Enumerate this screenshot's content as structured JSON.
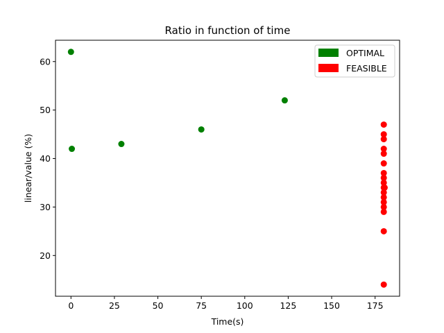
{
  "chart_data": {
    "type": "scatter",
    "title": "Ratio in function of time",
    "xlabel": "Time(s)",
    "ylabel": "linear/value (%)",
    "xlim": [
      -8.9,
      189.1
    ],
    "ylim": [
      11.6,
      64.4
    ],
    "xticks": [
      0,
      25,
      50,
      75,
      100,
      125,
      150,
      175
    ],
    "yticks": [
      20,
      30,
      40,
      50,
      60
    ],
    "grid": false,
    "legend_position": "top-right",
    "series": [
      {
        "name": "OPTIMAL",
        "color": "#008000",
        "points": [
          {
            "x": 0,
            "y": 62
          },
          {
            "x": 0.5,
            "y": 42
          },
          {
            "x": 29,
            "y": 43
          },
          {
            "x": 75,
            "y": 46
          },
          {
            "x": 123,
            "y": 52
          }
        ]
      },
      {
        "name": "FEASIBLE",
        "color": "#ff0000",
        "points": [
          {
            "x": 180,
            "y": 47
          },
          {
            "x": 180,
            "y": 45
          },
          {
            "x": 180,
            "y": 44
          },
          {
            "x": 180,
            "y": 42
          },
          {
            "x": 180,
            "y": 41
          },
          {
            "x": 180,
            "y": 39
          },
          {
            "x": 180,
            "y": 37
          },
          {
            "x": 180,
            "y": 36
          },
          {
            "x": 180,
            "y": 35
          },
          {
            "x": 180,
            "y": 34
          },
          {
            "x": 180.5,
            "y": 34
          },
          {
            "x": 180,
            "y": 33
          },
          {
            "x": 180,
            "y": 32
          },
          {
            "x": 180,
            "y": 31
          },
          {
            "x": 180,
            "y": 30
          },
          {
            "x": 180,
            "y": 29
          },
          {
            "x": 180,
            "y": 25
          },
          {
            "x": 180,
            "y": 14
          }
        ]
      }
    ]
  }
}
